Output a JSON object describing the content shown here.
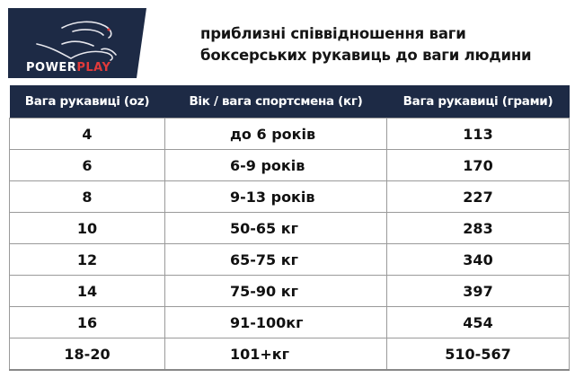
{
  "logo": {
    "brand": "POWERPLAY",
    "bg_color": "#1d2a45",
    "accent_color": "#e03a3a"
  },
  "title": {
    "line1": "приблизні співвідношення ваги",
    "line2": "боксерських рукавиць до ваги людини"
  },
  "table": {
    "headers": [
      "Вага рукавиці (oz)",
      "Вік / вага спортсмена (кг)",
      "Вага рукавиці (грами)"
    ],
    "rows": [
      [
        "4",
        "до 6 років",
        "113"
      ],
      [
        "6",
        "6-9 років",
        "170"
      ],
      [
        "8",
        "9-13 років",
        "227"
      ],
      [
        "10",
        "50-65 кг",
        "283"
      ],
      [
        "12",
        "65-75 кг",
        "340"
      ],
      [
        "14",
        "75-90 кг",
        "397"
      ],
      [
        "16",
        "91-100кг",
        "454"
      ],
      [
        "18-20",
        "101+кг",
        "510-567"
      ]
    ]
  }
}
